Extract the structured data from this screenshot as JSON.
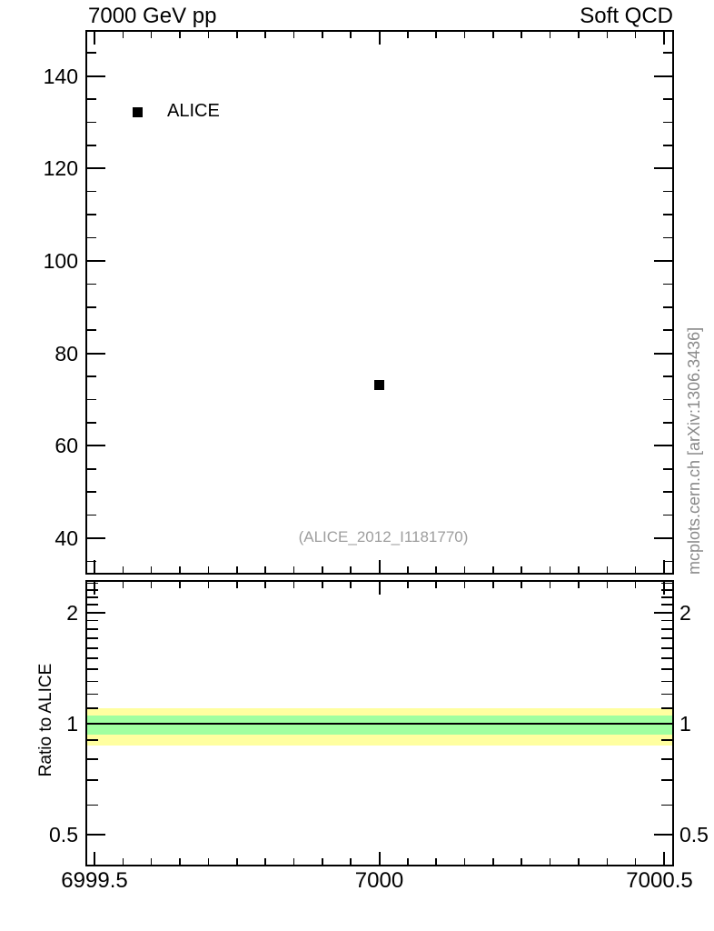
{
  "titles": {
    "left": "7000 GeV pp",
    "right": "Soft QCD"
  },
  "annotations": {
    "analysis_ref": "(ALICE_2012_I1181770)",
    "watermark": "mcplots.cern.ch [arXiv:1306.3436]"
  },
  "legend": {
    "items": [
      {
        "label": "ALICE",
        "marker": "filled-square",
        "color": "#000000"
      }
    ]
  },
  "colors": {
    "frame": "#000000",
    "marker": "#000000",
    "band_outer": "#ffffa0",
    "band_inner": "#a0ffa0",
    "ref_text_gray": "#9e9e9e",
    "watermark_gray": "#8a8a8a"
  },
  "chart_data": {
    "type": "scatter",
    "title": "7000 GeV pp",
    "subtitle": "Soft QCD",
    "grid": false,
    "legend_position": "top-left-inside",
    "x": {
      "lim": [
        6999.48,
        7000.52
      ],
      "ticks": [
        6999.5,
        7000,
        7000.5
      ],
      "tick_labels": [
        "6999.5",
        "7000",
        "7000.5"
      ],
      "minor_step": 0.05,
      "label": ""
    },
    "panels": [
      {
        "name": "main",
        "ylim": [
          32,
          150
        ],
        "yticks_major": [
          40,
          60,
          80,
          100,
          120,
          140
        ],
        "ytick_labels": [
          "40",
          "60",
          "80",
          "100",
          "120",
          "140"
        ],
        "ytick_minor_step": 5,
        "series": [
          {
            "name": "ALICE",
            "marker": "filled-square",
            "color": "#000000",
            "points": [
              {
                "x": 7000,
                "y": 73.2
              }
            ]
          }
        ]
      },
      {
        "name": "ratio",
        "ylabel": "Ratio to ALICE",
        "yscale": "log",
        "ylim": [
          0.41,
          2.45
        ],
        "yticks_major": [
          0.5,
          1,
          2
        ],
        "ytick_labels": [
          "0.5",
          "1",
          "2"
        ],
        "yticks_minor": [
          0.6,
          0.7,
          0.8,
          0.9,
          1.1,
          1.2,
          1.3,
          1.4,
          1.5,
          1.6,
          1.7,
          1.8,
          1.9,
          2.1,
          2.2,
          2.3,
          2.4
        ],
        "reference_line": 1.0,
        "bands": [
          {
            "name": "outer-uncertainty",
            "color": "#ffffa0",
            "range": [
              0.87,
              1.1
            ]
          },
          {
            "name": "inner-uncertainty",
            "color": "#a0ffa0",
            "range": [
              0.93,
              1.05
            ]
          }
        ]
      }
    ]
  }
}
